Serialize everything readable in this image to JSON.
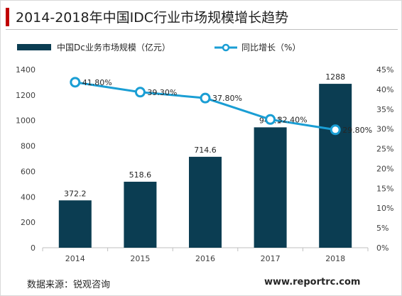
{
  "title": "2014-2018年中国IDC行业市场规模增长趋势",
  "source": "数据来源：锐观咨询",
  "website": "www.reportrc.com",
  "colors": {
    "bar": "#0b3d52",
    "line": "#1a9ed4",
    "accent": "#c00000"
  },
  "chart_data": {
    "type": "bar",
    "categories": [
      "2014",
      "2015",
      "2016",
      "2017",
      "2018"
    ],
    "series": [
      {
        "name": "中国Dc业务市场规模（亿元）",
        "type": "bar",
        "axis": "left",
        "values": [
          372.2,
          518.6,
          714.6,
          946.1,
          1288
        ],
        "labels": [
          "372.2",
          "518.6",
          "714.6",
          "946.1",
          "1288"
        ]
      },
      {
        "name": "同比增长（%）",
        "type": "line",
        "axis": "right",
        "values": [
          41.8,
          39.3,
          37.8,
          32.4,
          29.8
        ],
        "labels": [
          "41.80%",
          "39.30%",
          "37.80%",
          "32.40%",
          "29.80%"
        ]
      }
    ],
    "y_left": {
      "min": 0,
      "max": 1400,
      "ticks": [
        "0",
        "200",
        "400",
        "600",
        "800",
        "1000",
        "1200",
        "1400"
      ]
    },
    "y_right": {
      "min": 0,
      "max": 45,
      "ticks": [
        "0%",
        "5%",
        "10%",
        "15%",
        "20%",
        "25%",
        "30%",
        "35%",
        "40%",
        "45%"
      ]
    },
    "legend": "top",
    "grid": false
  }
}
